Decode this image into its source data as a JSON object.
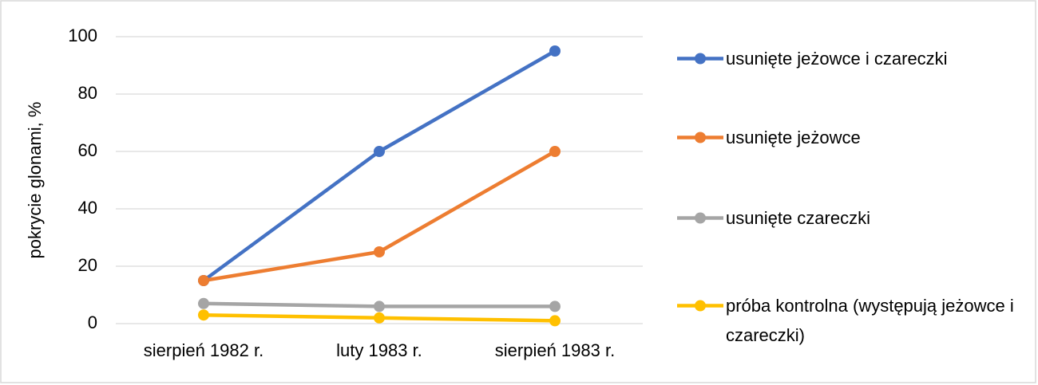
{
  "chart_data": {
    "type": "line",
    "y_label": "pokrycie glonami, %",
    "categories": [
      "sierpień 1982 r.",
      "luty 1983 r.",
      "sierpień 1983 r."
    ],
    "series": [
      {
        "name": "usunięte jeżowce i czareczki",
        "color": "#4472c4",
        "values": [
          15,
          60,
          95
        ]
      },
      {
        "name": "usunięte jeżowce",
        "color": "#ed7d31",
        "values": [
          15,
          25,
          60
        ]
      },
      {
        "name": "usunięte czareczki",
        "color": "#a5a5a5",
        "values": [
          7,
          6,
          6
        ]
      },
      {
        "name": "próba kontrolna (występują jeżowce i czareczki)",
        "color": "#ffc000",
        "values": [
          3,
          2,
          1
        ]
      }
    ],
    "ylim": [
      0,
      100
    ],
    "yticks": [
      0,
      20,
      40,
      60,
      80,
      100
    ],
    "grid": true,
    "legend": "right"
  }
}
